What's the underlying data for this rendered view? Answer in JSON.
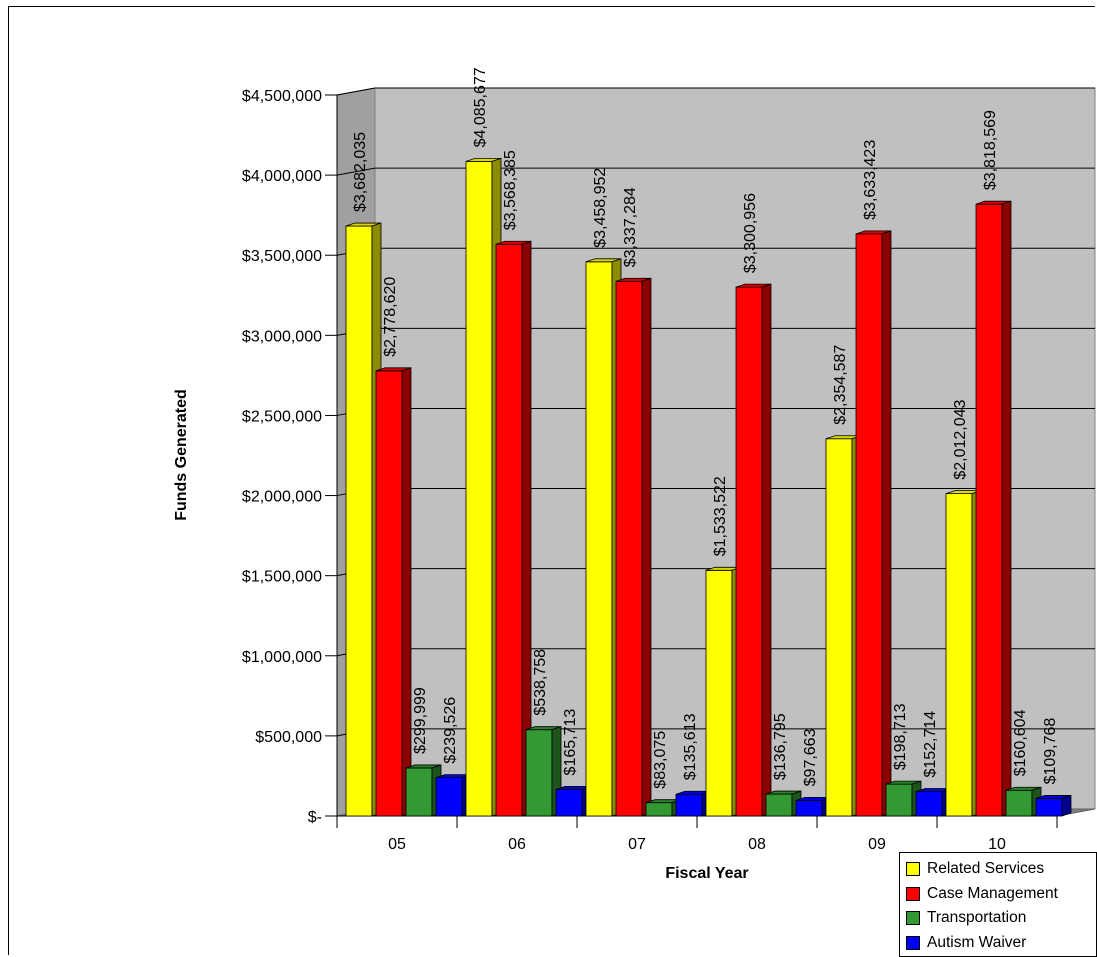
{
  "chart_data": {
    "type": "bar",
    "title": "",
    "xlabel": "Fiscal Year",
    "ylabel": "Funds Generated",
    "categories": [
      "05",
      "06",
      "07",
      "08",
      "09",
      "10"
    ],
    "ylim": [
      0,
      4500000
    ],
    "y_ticks": [
      0,
      500000,
      1000000,
      1500000,
      2000000,
      2500000,
      3000000,
      3500000,
      4000000,
      4500000
    ],
    "y_tick_labels": [
      "$-",
      "$500,000",
      "$1,000,000",
      "$1,500,000",
      "$2,000,000",
      "$2,500,000",
      "$3,000,000",
      "$3,500,000",
      "$4,000,000",
      "$4,500,000"
    ],
    "grid": true,
    "legend_position": "bottom-right",
    "series": [
      {
        "name": "Related Services",
        "color": "#ffff00",
        "values": [
          3682035,
          4085677,
          3458952,
          1533522,
          2354587,
          2012043
        ],
        "labels": [
          "$3,682,035",
          "$4,085,677",
          "$3,458,952",
          "$1,533,522",
          "$2,354,587",
          "$2,012,043"
        ]
      },
      {
        "name": "Case Management",
        "color": "#ff0000",
        "values": [
          2778620,
          3568385,
          3337284,
          3300956,
          3633423,
          3818569
        ],
        "labels": [
          "$2,778,620",
          "$3,568,385",
          "$3,337,284",
          "$3,300,956",
          "$3,633,423",
          "$3,818,569"
        ]
      },
      {
        "name": "Transportation",
        "color": "#339933",
        "values": [
          299999,
          538758,
          83075,
          136795,
          198713,
          160604
        ],
        "labels": [
          "$299,999",
          "$538,758",
          "$83,075",
          "$136,795",
          "$198,713",
          "$160,604"
        ]
      },
      {
        "name": "Autism Waiver",
        "color": "#0000ff",
        "values": [
          239526,
          165713,
          135613,
          97663,
          152714,
          109768
        ],
        "labels": [
          "$239,526",
          "$165,713",
          "$135,613",
          "$97,663",
          "$152,714",
          "$109,768"
        ]
      }
    ]
  }
}
